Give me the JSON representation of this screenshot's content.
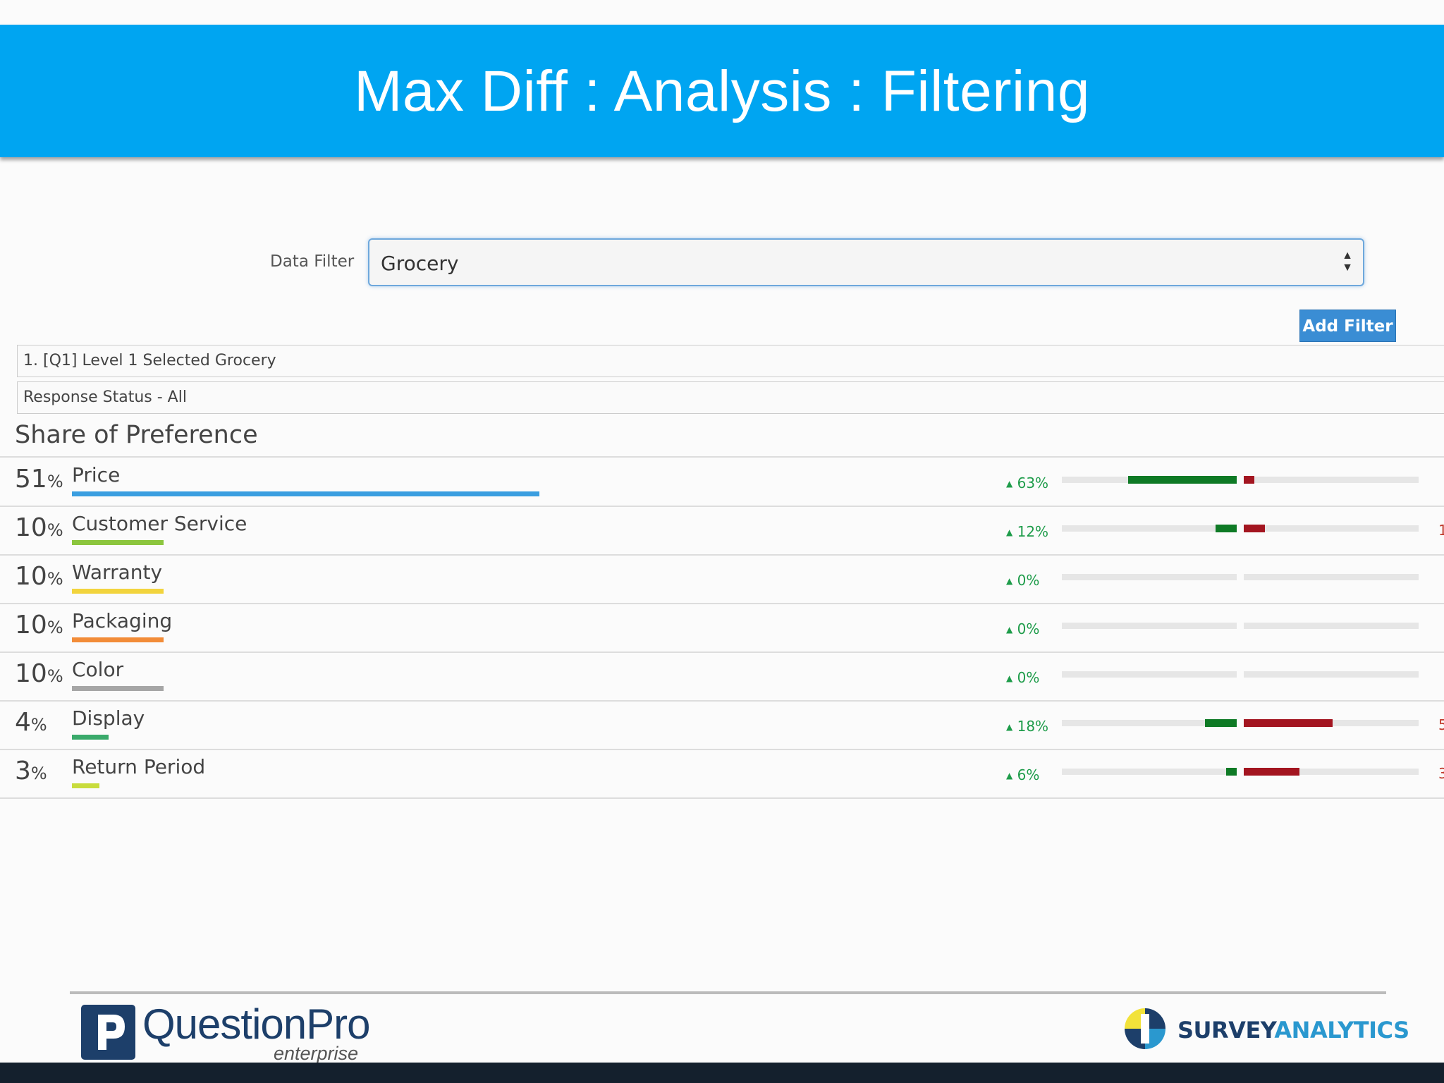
{
  "banner": {
    "title": "Max Diff : Analysis : Filtering"
  },
  "filter": {
    "label": "Data Filter",
    "selected": "Grocery",
    "add_button": "Add Filter",
    "applied": [
      "1. [Q1] Level 1 Selected Grocery",
      "Response Status - All"
    ]
  },
  "share_of_preference": {
    "title": "Share of Preference",
    "percent_sign": "%",
    "items": [
      {
        "value": "51",
        "label": "Price",
        "underline_color": "#3a9ee0",
        "delta": "63%",
        "left_bar": 0.62,
        "right_bar": 0.06
      },
      {
        "value": "10",
        "label": "Customer Service",
        "underline_color": "#8cc63e",
        "delta": "12%",
        "left_bar": 0.12,
        "right_bar": 0.12,
        "cut_value": "1"
      },
      {
        "value": "10",
        "label": "Warranty",
        "underline_color": "#f2d43d",
        "delta": "0%",
        "left_bar": 0,
        "right_bar": 0
      },
      {
        "value": "10",
        "label": "Packaging",
        "underline_color": "#f28c38",
        "delta": "0%",
        "left_bar": 0,
        "right_bar": 0
      },
      {
        "value": "10",
        "label": "Color",
        "underline_color": "#a6a6a6",
        "delta": "0%",
        "left_bar": 0,
        "right_bar": 0
      },
      {
        "value": "4",
        "label": "Display",
        "underline_color": "#3aaa6b",
        "delta": "18%",
        "left_bar": 0.18,
        "right_bar": 0.51,
        "cut_value": "5"
      },
      {
        "value": "3",
        "label": "Return Period",
        "underline_color": "#c8dc3c",
        "delta": "6%",
        "left_bar": 0.06,
        "right_bar": 0.32,
        "cut_value": "3"
      }
    ]
  },
  "delta_icon": "triangle-up-icon",
  "footer": {
    "questionpro": "QuestionPro",
    "questionpro_sub": "enterprise",
    "surveyanalytics_a": "SURVEY",
    "surveyanalytics_b": "ANALYTICS"
  },
  "colors": {
    "banner": "#00a5f1",
    "positive": "#0e7a25",
    "negative": "#a31520",
    "delta_text": "#1e9c4a"
  }
}
